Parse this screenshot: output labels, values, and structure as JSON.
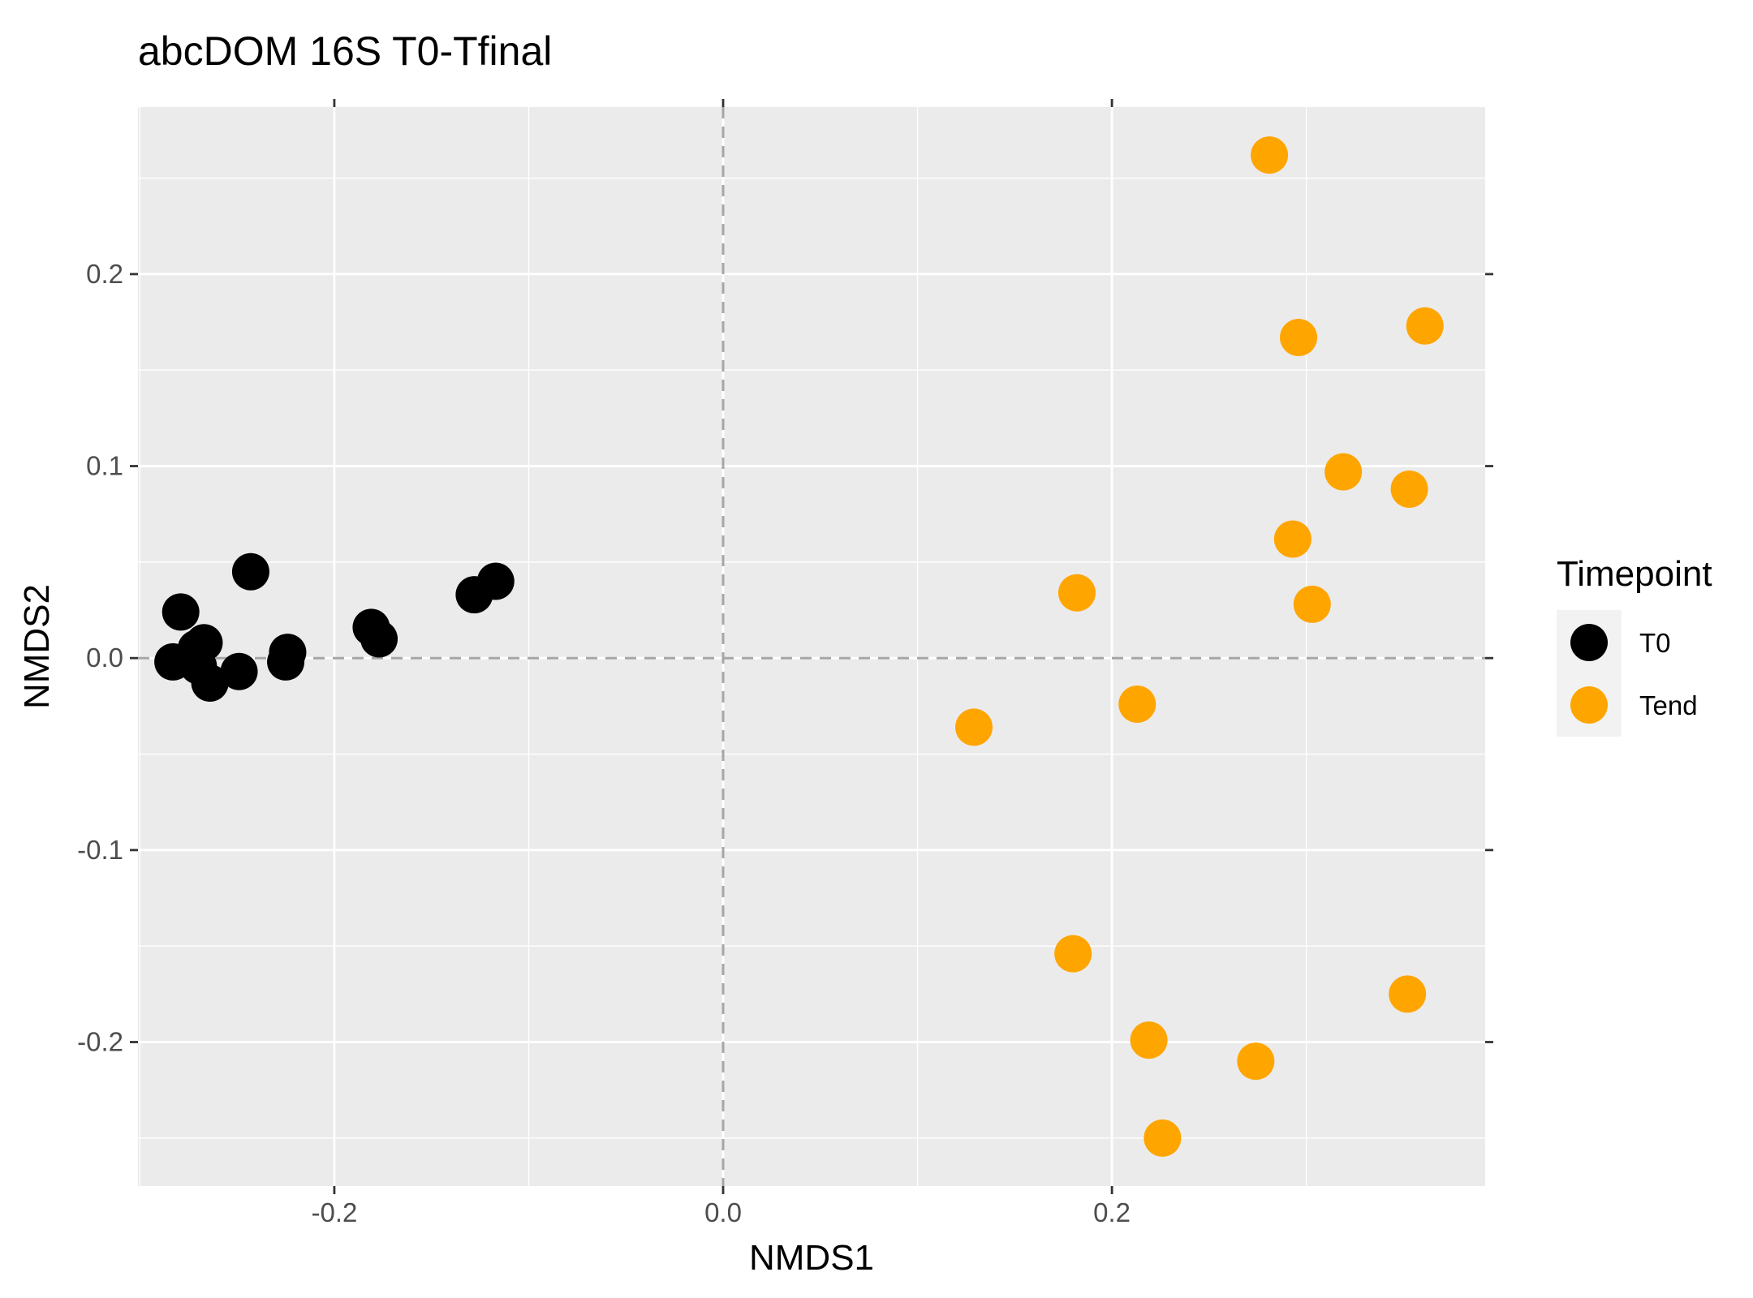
{
  "chart_data": {
    "type": "scatter",
    "title": "abcDOM 16S T0-Tfinal",
    "xlabel": "NMDS1",
    "ylabel": "NMDS2",
    "xlim": [
      -0.301,
      0.392
    ],
    "ylim": [
      -0.275,
      0.287
    ],
    "x_ticks": [
      -0.2,
      0.0,
      0.2
    ],
    "x_tick_labels": [
      "-0.2",
      "0.0",
      "0.2"
    ],
    "y_ticks": [
      -0.2,
      -0.1,
      0.0,
      0.1,
      0.2
    ],
    "y_tick_labels": [
      "-0.2",
      "-0.1",
      "0.0",
      "0.1",
      "0.2"
    ],
    "reference_lines": {
      "x": 0.0,
      "y": 0.0,
      "style": "dashed"
    },
    "grid": true,
    "legend": {
      "title": "Timepoint",
      "placement": "right"
    },
    "series": [
      {
        "name": "T0",
        "color": "#000000",
        "points": [
          [
            -0.279,
            0.024
          ],
          [
            -0.243,
            0.045
          ],
          [
            -0.283,
            -0.002
          ],
          [
            -0.271,
            0.005
          ],
          [
            -0.267,
            0.008
          ],
          [
            -0.27,
            -0.004
          ],
          [
            -0.264,
            -0.013
          ],
          [
            -0.249,
            -0.007
          ],
          [
            -0.224,
            0.003
          ],
          [
            -0.225,
            -0.002
          ],
          [
            -0.181,
            0.016
          ],
          [
            -0.177,
            0.01
          ],
          [
            -0.128,
            0.033
          ],
          [
            -0.117,
            0.04
          ]
        ]
      },
      {
        "name": "Tend",
        "color": "#FFA500",
        "points": [
          [
            0.281,
            0.262
          ],
          [
            0.296,
            0.167
          ],
          [
            0.361,
            0.173
          ],
          [
            0.319,
            0.097
          ],
          [
            0.353,
            0.088
          ],
          [
            0.293,
            0.062
          ],
          [
            0.303,
            0.028
          ],
          [
            0.182,
            0.034
          ],
          [
            0.213,
            -0.024
          ],
          [
            0.129,
            -0.036
          ],
          [
            0.18,
            -0.154
          ],
          [
            0.219,
            -0.199
          ],
          [
            0.274,
            -0.21
          ],
          [
            0.352,
            -0.175
          ],
          [
            0.226,
            -0.25
          ]
        ]
      }
    ]
  },
  "colors": {
    "panel_background": "#EBEBEB",
    "grid_major": "#FFFFFF",
    "reference_line": "#A6A6A6",
    "legend_key_background": "#F2F2F2"
  }
}
